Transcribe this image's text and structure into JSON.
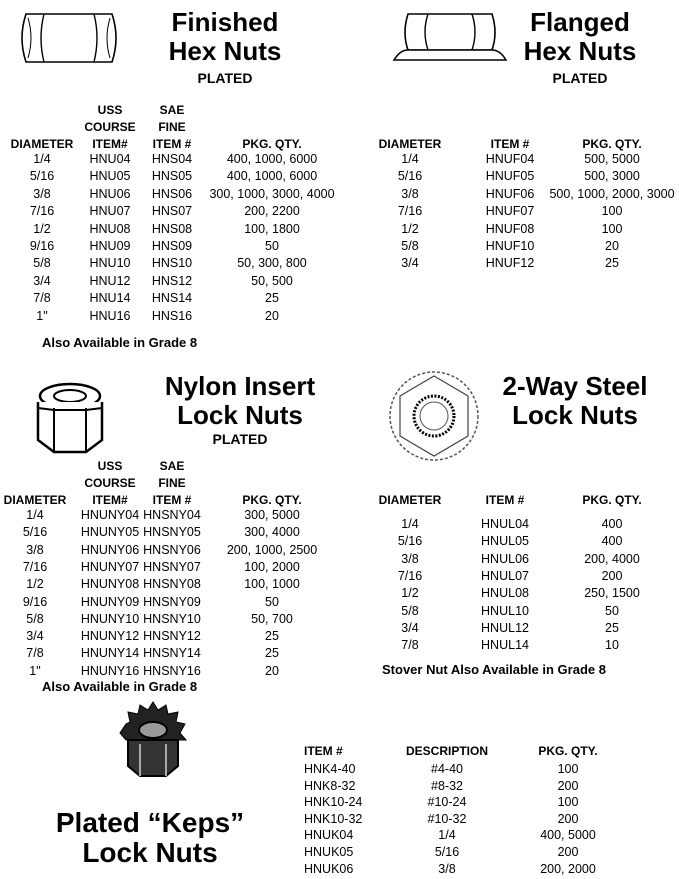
{
  "finished": {
    "title1": "Finished",
    "title2": "Hex Nuts",
    "plated": "PLATED",
    "headers": [
      [
        "DIAMETER"
      ],
      [
        "USS",
        "COURSE",
        "ITEM#"
      ],
      [
        "SAE",
        "FINE",
        "ITEM #"
      ],
      [
        "PKG. QTY."
      ]
    ],
    "rows": [
      [
        "1/4",
        "HNU04",
        "HNS04",
        "400, 1000, 6000"
      ],
      [
        "5/16",
        "HNU05",
        "HNS05",
        "400, 1000, 6000"
      ],
      [
        "3/8",
        "HNU06",
        "HNS06",
        "300, 1000, 3000, 4000"
      ],
      [
        "7/16",
        "HNU07",
        "HNS07",
        "200, 2200"
      ],
      [
        "1/2",
        "HNU08",
        "HNS08",
        "100, 1800"
      ],
      [
        "9/16",
        "HNU09",
        "HNS09",
        "50"
      ],
      [
        "5/8",
        "HNU10",
        "HNS10",
        "50, 300, 800"
      ],
      [
        "3/4",
        "HNU12",
        "HNS12",
        "50, 500"
      ],
      [
        "7/8",
        "HNU14",
        "HNS14",
        "25"
      ],
      [
        "1\"",
        "HNU16",
        "HNS16",
        "20"
      ]
    ],
    "note": "Also Available in Grade 8"
  },
  "flanged": {
    "title1": "Flanged",
    "title2": "Hex Nuts",
    "plated": "PLATED",
    "headers": [
      [
        "DIAMETER"
      ],
      [
        "ITEM #"
      ],
      [
        "PKG. QTY."
      ]
    ],
    "rows": [
      [
        "1/4",
        "HNUF04",
        "500, 5000"
      ],
      [
        "5/16",
        "HNUF05",
        "500, 3000"
      ],
      [
        "3/8",
        "HNUF06",
        "500, 1000, 2000, 3000"
      ],
      [
        "7/16",
        "HNUF07",
        "100"
      ],
      [
        "1/2",
        "HNUF08",
        "100"
      ],
      [
        "5/8",
        "HNUF10",
        "20"
      ],
      [
        "3/4",
        "HNUF12",
        "25"
      ]
    ]
  },
  "nylon": {
    "title1": "Nylon Insert",
    "title2": "Lock Nuts",
    "plated": "PLATED",
    "headers": [
      [
        "DIAMETER"
      ],
      [
        "USS",
        "COURSE",
        "ITEM#"
      ],
      [
        "SAE",
        "FINE",
        "ITEM #"
      ],
      [
        "PKG. QTY."
      ]
    ],
    "rows": [
      [
        "1/4",
        "HNUNY04",
        "HNSNY04",
        "300, 5000"
      ],
      [
        "5/16",
        "HNUNY05",
        "HNSNY05",
        "300, 4000"
      ],
      [
        "3/8",
        "HNUNY06",
        "HNSNY06",
        "200, 1000, 2500"
      ],
      [
        "7/16",
        "HNUNY07",
        "HNSNY07",
        "100, 2000"
      ],
      [
        "1/2",
        "HNUNY08",
        "HNSNY08",
        "100, 1000"
      ],
      [
        "9/16",
        "HNUNY09",
        "HNSNY09",
        "50"
      ],
      [
        "5/8",
        "HNUNY10",
        "HNSNY10",
        "50, 700"
      ],
      [
        "3/4",
        "HNUNY12",
        "HNSNY12",
        "25"
      ],
      [
        "7/8",
        "HNUNY14",
        "HNSNY14",
        "25"
      ],
      [
        "1\"",
        "HNUNY16",
        "HNSNY16",
        "20"
      ]
    ],
    "note": "Also Available in Grade 8"
  },
  "twoway": {
    "title1": "2-Way Steel",
    "title2": "Lock Nuts",
    "headers": [
      [
        "DIAMETER"
      ],
      [
        "ITEM #"
      ],
      [
        "PKG. QTY."
      ]
    ],
    "rows": [
      [
        "1/4",
        "HNUL04",
        "400"
      ],
      [
        "5/16",
        "HNUL05",
        "400"
      ],
      [
        "3/8",
        "HNUL06",
        "200, 4000"
      ],
      [
        "7/16",
        "HNUL07",
        "200"
      ],
      [
        "1/2",
        "HNUL08",
        "250, 1500"
      ],
      [
        "5/8",
        "HNUL10",
        "50"
      ],
      [
        "3/4",
        "HNUL12",
        "25"
      ],
      [
        "7/8",
        "HNUL14",
        "10"
      ]
    ],
    "note": "Stover Nut Also Available in Grade 8"
  },
  "keps": {
    "title1": "Plated “Keps”",
    "title2": "Lock Nuts",
    "headers": [
      [
        "ITEM #"
      ],
      [
        "DESCRIPTION"
      ],
      [
        "PKG. QTY."
      ]
    ],
    "rows": [
      [
        "HNK4-40",
        "#4-40",
        "100"
      ],
      [
        "HNK8-32",
        "#8-32",
        "200"
      ],
      [
        "HNK10-24",
        "#10-24",
        "100"
      ],
      [
        "HNK10-32",
        "#10-32",
        "200"
      ],
      [
        "HNUK04",
        "1/4",
        "400, 5000"
      ],
      [
        "HNUK05",
        "5/16",
        "200"
      ],
      [
        "HNUK06",
        "3/8",
        "200, 2000"
      ]
    ]
  }
}
